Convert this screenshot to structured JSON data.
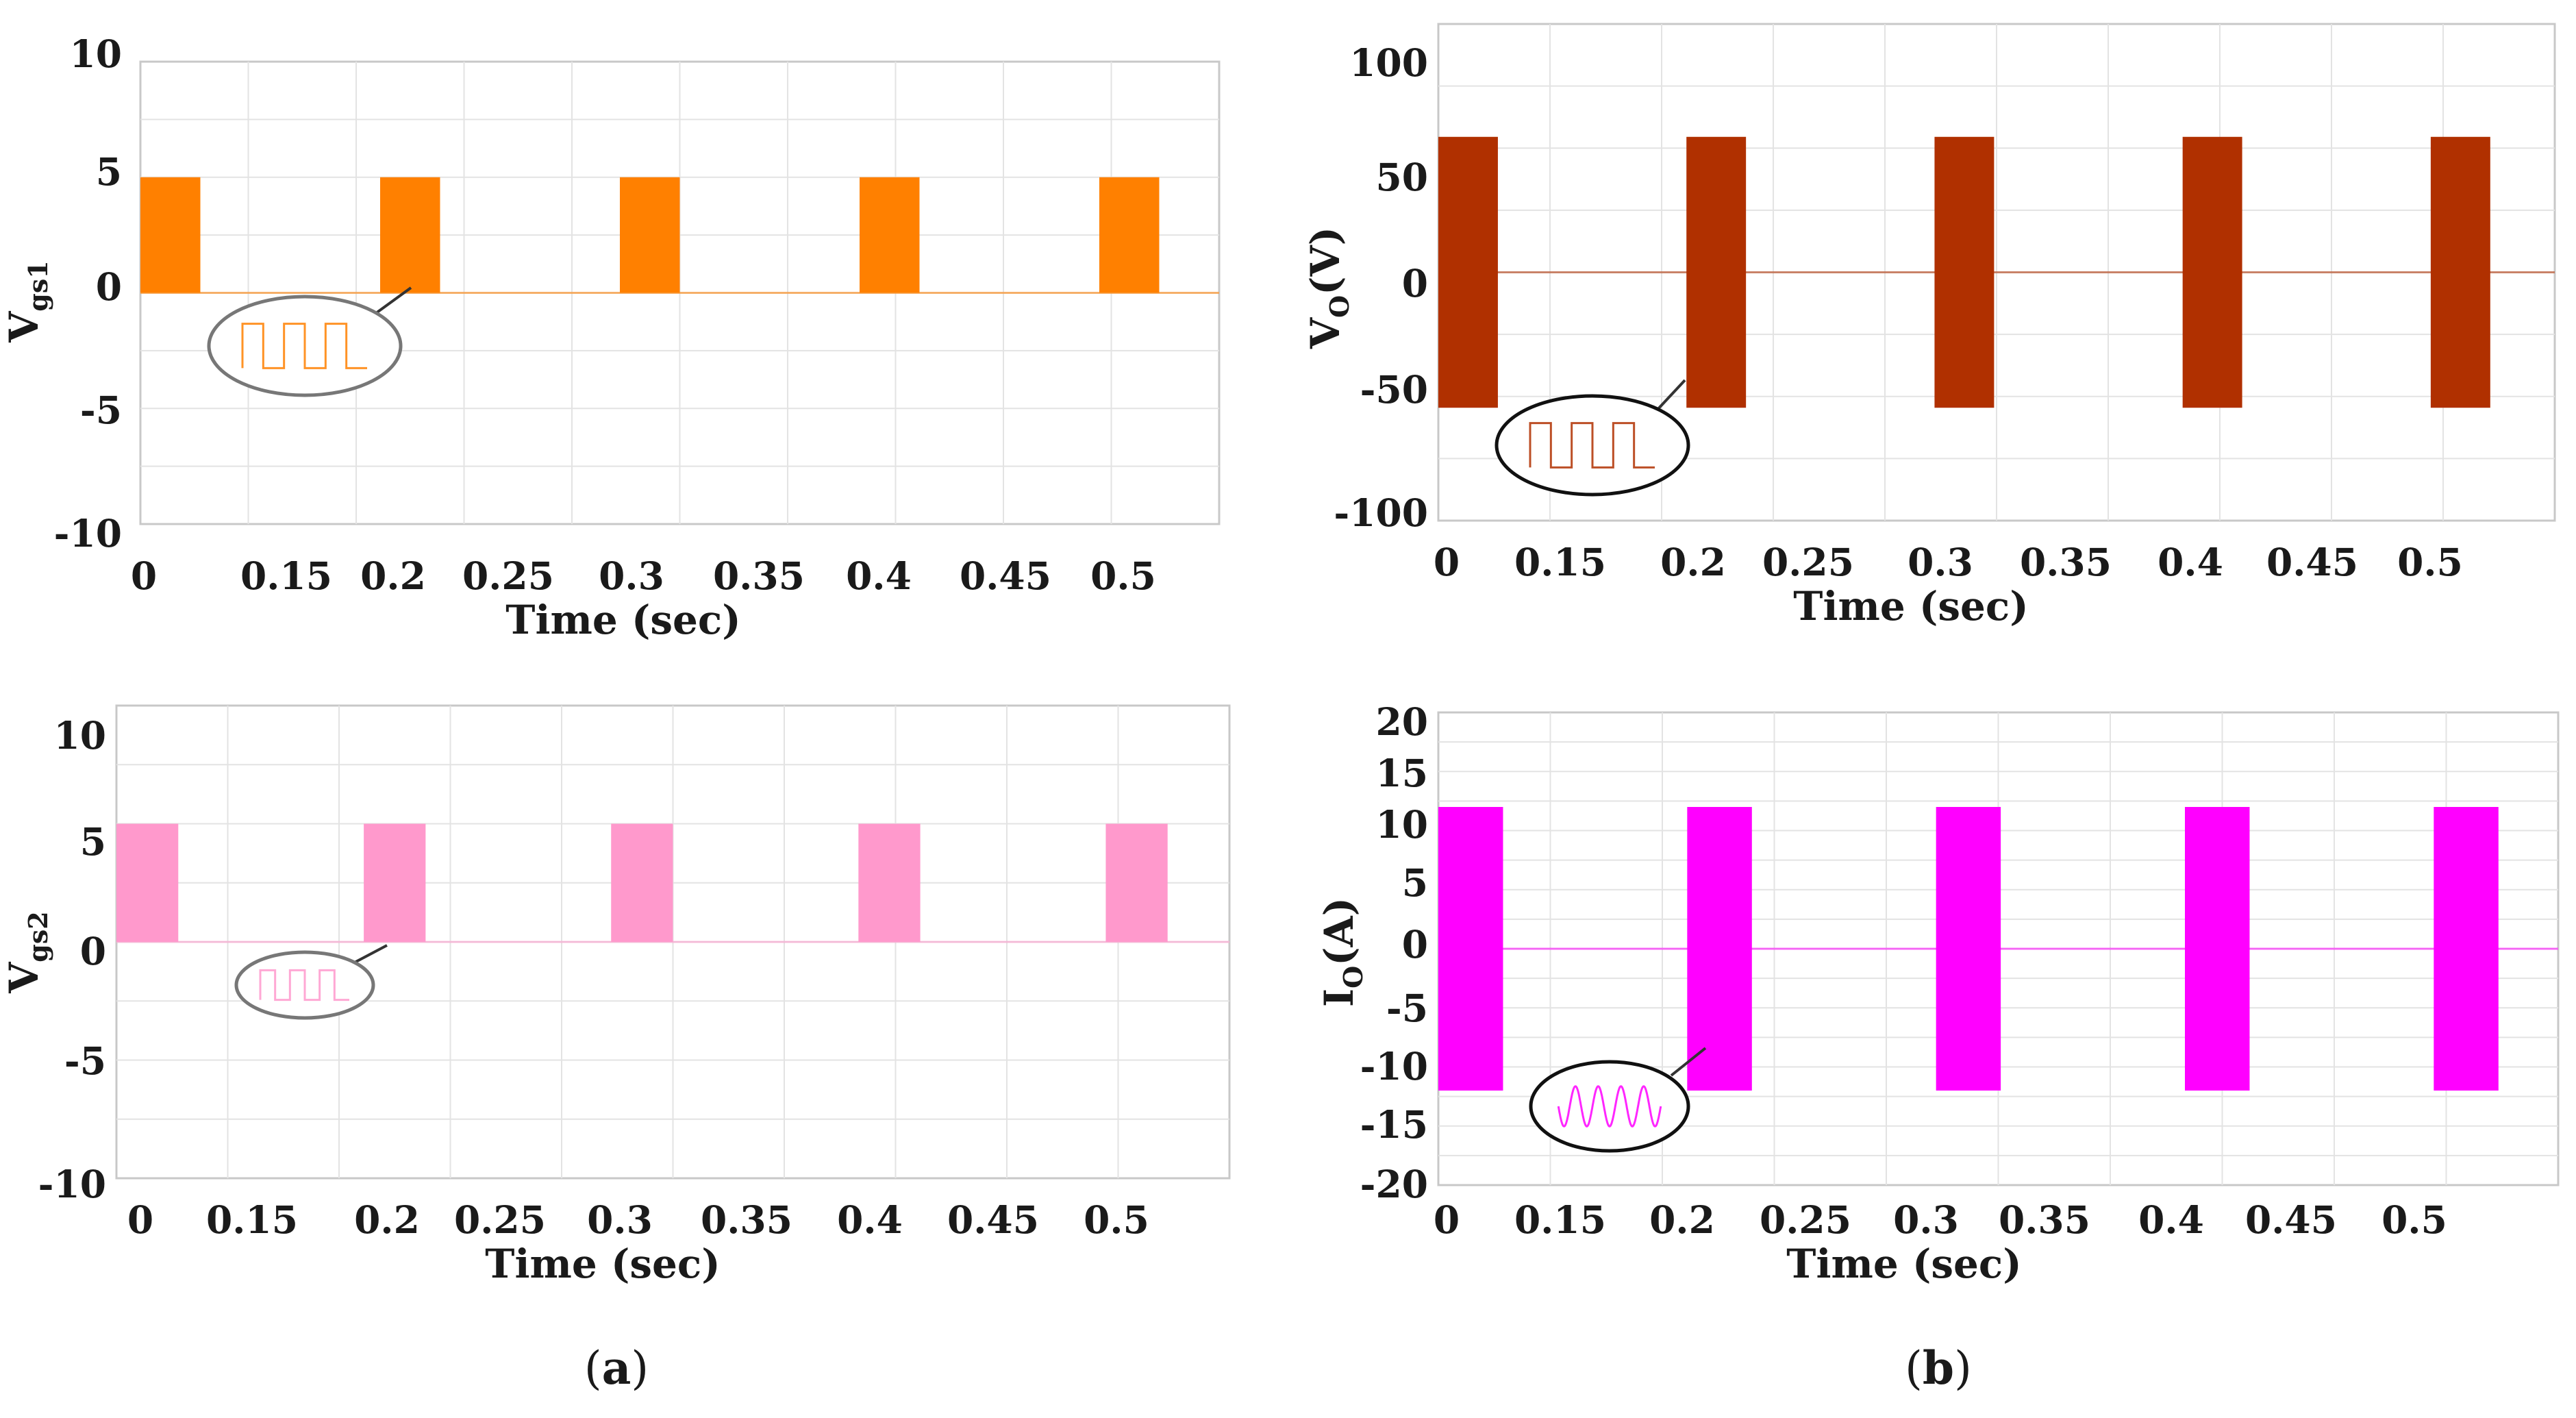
{
  "captions": {
    "a": {
      "open": "(",
      "letter": "a",
      "close": ")"
    },
    "b": {
      "open": "(",
      "letter": "b",
      "close": ")"
    }
  },
  "chart_data": [
    {
      "id": "vgs1",
      "type": "line",
      "title": "",
      "xlabel": "Time (sec)",
      "ylabel": {
        "main": "V",
        "sub": "gs1"
      },
      "x_ticks": [
        "0",
        "0.15",
        "0.2",
        "0.25",
        "0.3",
        "0.35",
        "0.4",
        "0.45",
        "0.5"
      ],
      "y_ticks": [
        "10",
        "5",
        "0",
        "-5",
        "-10"
      ],
      "ylim": [
        -10,
        10
      ],
      "grid": true,
      "color": "#ff8000",
      "series": [
        {
          "values": [
            [
              0,
              5
            ],
            [
              0.025,
              5
            ],
            [
              0.025,
              0
            ],
            [
              0.1,
              0
            ],
            [
              0.1,
              5
            ],
            [
              0.125,
              5
            ],
            [
              0.125,
              0
            ],
            [
              0.2,
              0
            ],
            [
              0.2,
              5
            ],
            [
              0.225,
              5
            ],
            [
              0.225,
              0
            ],
            [
              0.3,
              0
            ],
            [
              0.3,
              5
            ],
            [
              0.325,
              5
            ],
            [
              0.325,
              0
            ],
            [
              0.4,
              0
            ],
            [
              0.4,
              5
            ],
            [
              0.425,
              5
            ],
            [
              0.425,
              0
            ],
            [
              0.45,
              0
            ]
          ]
        }
      ],
      "inset": "square-wave zoom"
    },
    {
      "id": "vo",
      "type": "line",
      "title": "",
      "xlabel": "Time (sec)",
      "ylabel": {
        "main": "V",
        "sub": "O",
        "rest": "(V)"
      },
      "x_ticks": [
        "0",
        "0.15",
        "0.2",
        "0.25",
        "0.3",
        "0.35",
        "0.4",
        "0.45",
        "0.5"
      ],
      "y_ticks": [
        "100",
        "50",
        "0",
        "-50",
        "-100"
      ],
      "ylim": [
        -110,
        110
      ],
      "grid": true,
      "color": "#b03000",
      "series": [
        {
          "values": [
            [
              0,
              60
            ],
            [
              0.024,
              60
            ],
            [
              0.024,
              -60
            ],
            [
              0.1,
              -60
            ],
            [
              0.1,
              60
            ],
            [
              0.124,
              60
            ],
            [
              0.124,
              -60
            ],
            [
              0.2,
              -60
            ],
            [
              0.2,
              60
            ],
            [
              0.224,
              60
            ],
            [
              0.224,
              -60
            ],
            [
              0.3,
              -60
            ],
            [
              0.3,
              60
            ],
            [
              0.324,
              60
            ],
            [
              0.324,
              -60
            ],
            [
              0.4,
              -60
            ],
            [
              0.4,
              60
            ],
            [
              0.424,
              60
            ],
            [
              0.424,
              -60
            ],
            [
              0.45,
              -60
            ]
          ]
        }
      ],
      "inset": "square-wave zoom"
    },
    {
      "id": "vgs2",
      "type": "line",
      "title": "",
      "xlabel": "Time (sec)",
      "ylabel": {
        "main": "V",
        "sub": "gs2"
      },
      "x_ticks": [
        "0",
        "0.15",
        "0.2",
        "0.25",
        "0.3",
        "0.35",
        "0.4",
        "0.45",
        "0.5"
      ],
      "y_ticks": [
        "10",
        "5",
        "0",
        "-5",
        "-10"
      ],
      "ylim": [
        -10,
        10
      ],
      "grid": true,
      "color": "#ff99cc",
      "series": [
        {
          "values": [
            [
              0,
              5
            ],
            [
              0.025,
              5
            ],
            [
              0.025,
              0
            ],
            [
              0.1,
              0
            ],
            [
              0.1,
              5
            ],
            [
              0.125,
              5
            ],
            [
              0.125,
              0
            ],
            [
              0.2,
              0
            ],
            [
              0.2,
              5
            ],
            [
              0.225,
              5
            ],
            [
              0.225,
              0
            ],
            [
              0.3,
              0
            ],
            [
              0.3,
              5
            ],
            [
              0.325,
              5
            ],
            [
              0.325,
              0
            ],
            [
              0.4,
              0
            ],
            [
              0.4,
              5
            ],
            [
              0.425,
              5
            ],
            [
              0.425,
              0
            ],
            [
              0.45,
              0
            ]
          ]
        }
      ],
      "inset": "square-wave zoom"
    },
    {
      "id": "io",
      "type": "line",
      "title": "",
      "xlabel": "Time (sec)",
      "ylabel": {
        "main": "I",
        "sub": "O",
        "rest": "(A)"
      },
      "x_ticks": [
        "0",
        "0.15",
        "0.2",
        "0.25",
        "0.3",
        "0.35",
        "0.4",
        "0.45",
        "0.5"
      ],
      "y_ticks": [
        "20",
        "15",
        "10",
        "5",
        "0",
        "-5",
        "-10",
        "-15",
        "-20"
      ],
      "ylim": [
        -20,
        20
      ],
      "grid": true,
      "color": "#ff00ff",
      "series": [
        {
          "values": [
            [
              0,
              12
            ],
            [
              0.026,
              12
            ],
            [
              0.026,
              -12
            ],
            [
              0.1,
              -12
            ],
            [
              0.1,
              12
            ],
            [
              0.126,
              12
            ],
            [
              0.126,
              -12
            ],
            [
              0.2,
              -12
            ],
            [
              0.2,
              12
            ],
            [
              0.226,
              12
            ],
            [
              0.226,
              -12
            ],
            [
              0.3,
              -12
            ],
            [
              0.3,
              12
            ],
            [
              0.326,
              12
            ],
            [
              0.326,
              -12
            ],
            [
              0.4,
              -12
            ],
            [
              0.4,
              12
            ],
            [
              0.426,
              12
            ],
            [
              0.426,
              -12
            ],
            [
              0.45,
              -12
            ]
          ]
        }
      ],
      "inset": "sinusoid zoom"
    }
  ]
}
